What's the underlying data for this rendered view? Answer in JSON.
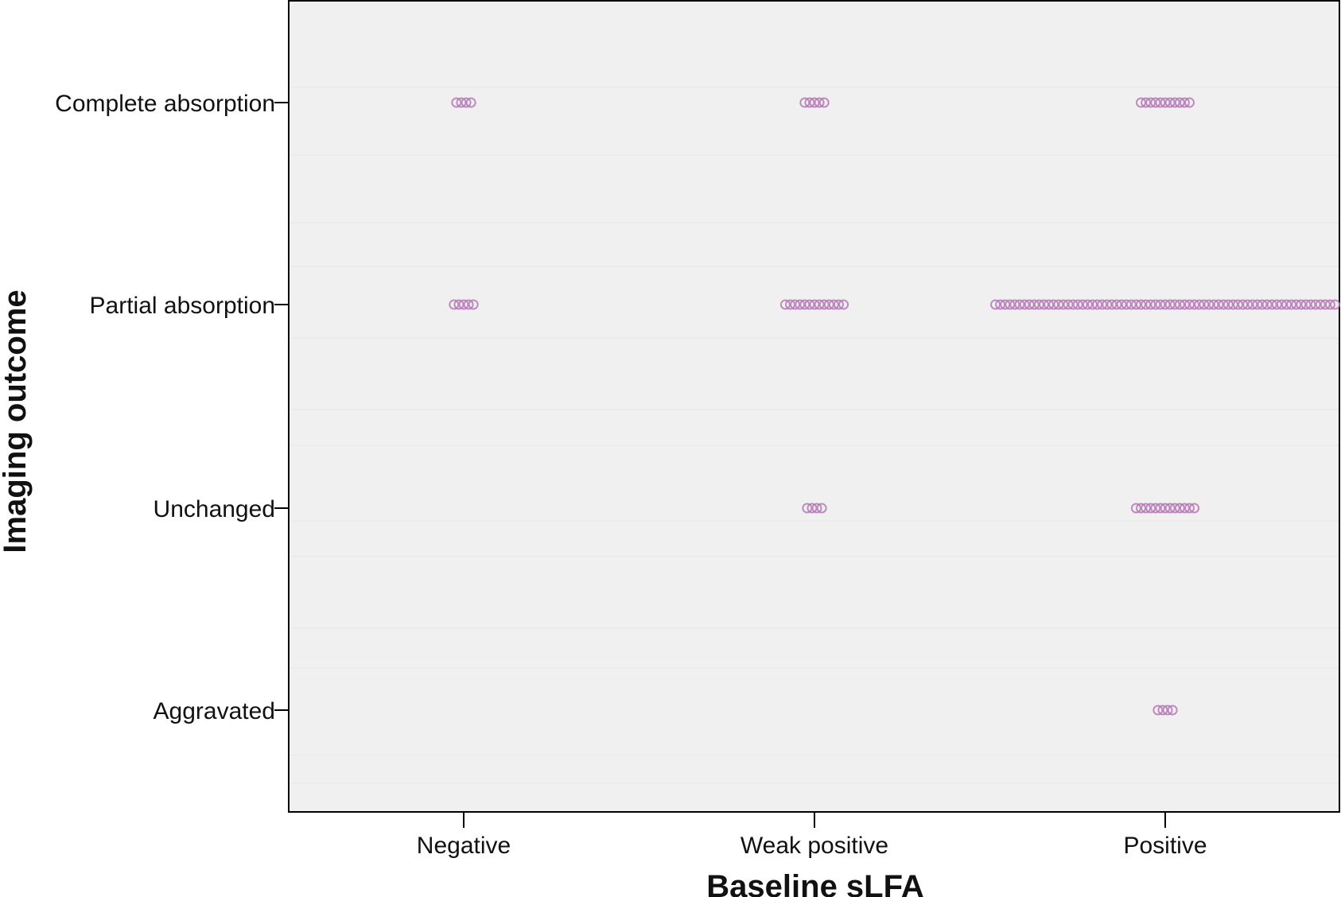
{
  "chart_data": {
    "type": "scatter",
    "title": "",
    "xlabel": "Baseline sLFA",
    "ylabel": "Imaging outcome",
    "x_categories": [
      "Negative",
      "Weak positive",
      "Positive"
    ],
    "y_categories": [
      "Complete absorption",
      "Partial absorption",
      "Unchanged",
      "Aggravated"
    ],
    "grid": false,
    "marker": "open-circle",
    "colors": {
      "marker": "#b678b7",
      "plot_bg": "#f0f0f0",
      "axis": "#000000"
    },
    "counts": [
      {
        "x": "Negative",
        "y": "Complete absorption",
        "n": 4
      },
      {
        "x": "Negative",
        "y": "Partial absorption",
        "n": 5
      },
      {
        "x": "Weak positive",
        "y": "Complete absorption",
        "n": 5
      },
      {
        "x": "Weak positive",
        "y": "Partial absorption",
        "n": 13
      },
      {
        "x": "Weak positive",
        "y": "Unchanged",
        "n": 4
      },
      {
        "x": "Positive",
        "y": "Complete absorption",
        "n": 11
      },
      {
        "x": "Positive",
        "y": "Partial absorption",
        "n": 71
      },
      {
        "x": "Positive",
        "y": "Unchanged",
        "n": 13
      },
      {
        "x": "Positive",
        "y": "Aggravated",
        "n": 4
      }
    ]
  }
}
